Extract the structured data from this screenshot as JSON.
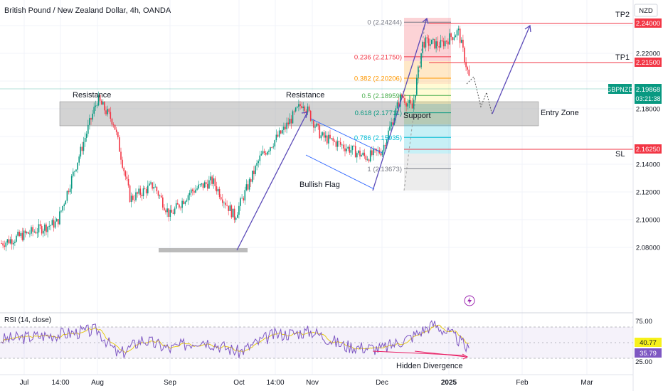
{
  "header": {
    "title": "British Pound / New Zealand Dollar, 4h, OANDA",
    "currency": "NZD"
  },
  "chart_data": [
    {
      "type": "line",
      "title": "British Pound / New Zealand Dollar, 4h, OANDA",
      "symbol": "GBPNZD",
      "last_price": "2.19868",
      "countdown": "03:21:38",
      "ylim": [
        2.07,
        2.245
      ],
      "grid": true,
      "y_ticks": [
        "2.24000",
        "2.22000",
        "2.21500",
        "2.18000",
        "2.16250",
        "2.14000",
        "2.12000",
        "2.10000",
        "2.08000"
      ],
      "x_ticks": [
        "Jul",
        "14:00",
        "Aug",
        "Sep",
        "Oct",
        "14:00",
        "Nov",
        "Dec",
        "2025",
        "Feb",
        "Mar"
      ],
      "series": [
        {
          "x": [
            "Jul 1",
            "Jul 15",
            "Jul 25",
            "Aug 1",
            "Aug 8",
            "Aug 15",
            "Aug 25",
            "Sep 1",
            "Sep 10",
            "Sep 20",
            "Sep 30",
            "Oct 10",
            "Oct 20",
            "Oct 28",
            "Nov 5",
            "Nov 15",
            "Nov 25",
            "Dec 1",
            "Dec 10",
            "Dec 15",
            "Dec 20",
            "Dec 28",
            "Jan 5",
            "Jan 10"
          ],
          "values": [
            2.083,
            2.098,
            2.15,
            2.187,
            2.17,
            2.115,
            2.125,
            2.103,
            2.12,
            2.128,
            2.102,
            2.145,
            2.165,
            2.185,
            2.16,
            2.153,
            2.145,
            2.15,
            2.19,
            2.18,
            2.228,
            2.226,
            2.236,
            2.199
          ]
        }
      ],
      "annotations": [
        "Resistance",
        "Resistance",
        "Support",
        "Bullish Flag",
        "Entry Zone",
        "TP2",
        "TP1",
        "SL",
        "Hidden Divergence"
      ],
      "levels": [
        {
          "name": "TP2",
          "value": 2.24,
          "label": "2.24000",
          "color": "#f23645"
        },
        {
          "name": "TP1",
          "value": 2.215,
          "label": "2.21500",
          "color": "#f23645"
        },
        {
          "name": "SL",
          "value": 2.1625,
          "label": "2.16250",
          "color": "#f23645"
        }
      ],
      "fibonacci": [
        {
          "label": "0 (2.24244)",
          "value": 2.24244,
          "color": "#787b86"
        },
        {
          "label": "0.236 (2.21750)",
          "value": 2.2175,
          "color": "#f23645"
        },
        {
          "label": "0.382 (2.20206)",
          "value": 2.20206,
          "color": "#ff9800"
        },
        {
          "label": "0.5 (2.18959)",
          "value": 2.18959,
          "color": "#4caf50"
        },
        {
          "label": "0.618 (2.17711)",
          "value": 2.17711,
          "color": "#089981"
        },
        {
          "label": "0.786 (2.15935)",
          "value": 2.15935,
          "color": "#00bcd4"
        },
        {
          "label": "1 (2.13673)",
          "value": 2.13673,
          "color": "#787b86"
        }
      ]
    },
    {
      "type": "line",
      "title": "RSI (14, close)",
      "ylim": [
        20,
        85
      ],
      "y_ticks": [
        "75.00",
        "25.00"
      ],
      "value_labels": [
        "40.77",
        "35.79"
      ],
      "series": [
        {
          "x": [
            "Jul 1",
            "Jul 20",
            "Aug 1",
            "Aug 10",
            "Aug 20",
            "Sep 1",
            "Sep 15",
            "Oct 1",
            "Oct 15",
            "Nov 1",
            "Nov 15",
            "Dec 1",
            "Dec 15",
            "Dec 25",
            "Jan 5",
            "Jan 10"
          ],
          "values": [
            55,
            65,
            70,
            30,
            55,
            40,
            55,
            35,
            62,
            68,
            45,
            40,
            60,
            80,
            55,
            35
          ]
        }
      ],
      "annotations": [
        "Hidden Divergence"
      ]
    }
  ]
}
